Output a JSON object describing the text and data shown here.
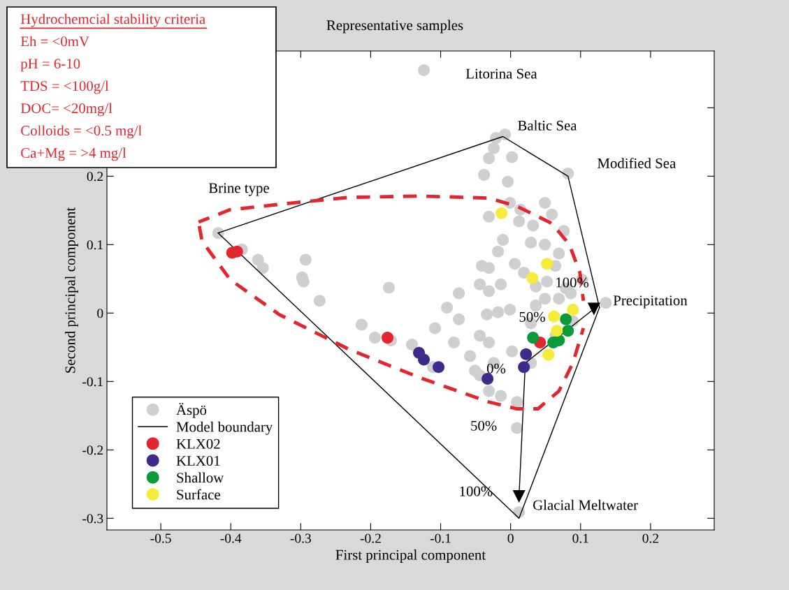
{
  "chart_data": {
    "type": "scatter",
    "title": "Representative samples",
    "xlabel": "First principal component",
    "ylabel": "Second principal component",
    "xlim": [
      -0.577,
      0.291
    ],
    "ylim": [
      -0.317,
      0.383
    ],
    "xticks": [
      -0.5,
      -0.4,
      -0.3,
      -0.2,
      -0.1,
      {
        "value": 0,
        "label": "0"
      },
      0.1,
      0.2
    ],
    "yticks": [
      -0.3,
      -0.2,
      -0.1,
      {
        "value": 0,
        "label": "0"
      },
      0.1,
      0.2,
      {
        "value": 0.3,
        "label": null
      }
    ],
    "grid": false,
    "legend": "bottom left",
    "marker": "circle",
    "series": [
      {
        "name": "Äspö",
        "color": "#cfcfd1",
        "x": [
          -0.124,
          -0.418,
          -0.384,
          -0.361,
          -0.354,
          -0.293,
          -0.298,
          -0.296,
          -0.273,
          -0.174,
          -0.213,
          -0.194,
          -0.171,
          -0.141,
          -0.021,
          -0.008,
          -0.024,
          -0.031,
          0.002,
          -0.038,
          -0.004,
          0.082,
          -0.001,
          0.049,
          0.059,
          0.076,
          0.012,
          0.032,
          -0.011,
          0.029,
          -0.018,
          0.049,
          0.069,
          -0.031,
          0.006,
          -0.044,
          -0.014,
          0.036,
          0.102,
          0.079,
          -0.074,
          -0.108,
          -0.034,
          -0.001,
          0.049,
          0.029,
          0.089,
          -0.044,
          -0.044,
          -0.014,
          0.009,
          0.012,
          -0.031,
          -0.018,
          0.002,
          -0.024,
          0.052,
          0.069,
          0.136,
          0.086,
          0.036,
          -0.081,
          -0.058,
          -0.074,
          -0.051,
          -0.031,
          0.009,
          0.029,
          0.064,
          -0.041,
          0.019,
          0.014,
          0.064,
          -0.091,
          -0.031,
          -0.111,
          -0.031
        ],
        "values": [
          0.355,
          0.117,
          0.093,
          0.078,
          0.066,
          0.078,
          0.052,
          0.046,
          0.018,
          0.037,
          -0.017,
          -0.036,
          -0.04,
          -0.046,
          0.256,
          0.261,
          0.241,
          0.226,
          0.228,
          0.202,
          0.192,
          0.204,
          0.161,
          0.161,
          0.144,
          0.12,
          0.134,
          0.128,
          0.107,
          0.103,
          0.09,
          0.1,
          0.087,
          0.066,
          0.072,
          0.042,
          0.042,
          0.039,
          0.049,
          0.036,
          -0.009,
          -0.022,
          -0.002,
          0.005,
          0.021,
          -0.015,
          -0.012,
          -0.033,
          -0.091,
          -0.121,
          -0.168,
          -0.291,
          0.032,
          0.001,
          -0.056,
          -0.073,
          0.046,
          0.021,
          0.015,
          0.029,
          0.011,
          -0.043,
          -0.063,
          0.029,
          -0.084,
          -0.114,
          -0.13,
          -0.073,
          -0.033,
          0.069,
          0.059,
          0.151,
          0.069,
          0.008,
          -0.043,
          -0.079,
          0.141
        ]
      },
      {
        "name": "Model boundary",
        "type": "line",
        "marker": "none",
        "line_style": "solid",
        "color": "#000000",
        "x": [
          -0.418,
          -0.011,
          0.082,
          0.127
        ],
        "values": [
          0.117,
          0.258,
          0.2,
          0.008
        ]
      },
      {
        "type": "line",
        "marker": "none",
        "line_style": "solid",
        "color": "#000000",
        "x": [
          -0.418,
          0.012,
          0.127
        ],
        "values": [
          0.117,
          -0.3,
          0.008
        ]
      },
      {
        "type": "line",
        "marker": "none",
        "line_style": "solid",
        "color": "#000000",
        "x": [
          0.012,
          0.021,
          0.119
        ],
        "values": [
          -0.268,
          -0.073,
          0.006
        ]
      },
      {
        "marker": "triangle",
        "color": "#000000",
        "x": [
          0.119,
          0.012
        ],
        "values": [
          0.006,
          -0.268
        ]
      },
      {
        "type": "line",
        "marker": "none",
        "line_style": "dashed",
        "color": "#e3262d",
        "x": [
          -0.446,
          -0.401,
          -0.311,
          -0.231,
          -0.131,
          -0.031,
          0.009,
          0.059,
          0.084,
          0.099,
          0.104
        ],
        "values": [
          0.133,
          0.151,
          0.161,
          0.169,
          0.171,
          0.168,
          0.156,
          0.131,
          0.1,
          0.059,
          0.018
        ]
      },
      {
        "type": "line",
        "marker": "none",
        "line_style": "dashed",
        "color": "#e3262d",
        "x": [
          -0.446,
          -0.441,
          -0.401,
          -0.331,
          -0.231,
          -0.131,
          -0.031,
          0.009,
          0.039,
          0.069,
          0.089,
          0.104
        ],
        "values": [
          0.133,
          0.105,
          0.049,
          -0.002,
          -0.053,
          -0.094,
          -0.13,
          -0.14,
          -0.14,
          -0.114,
          -0.073,
          -0.022
        ]
      },
      {
        "name": "KLX02",
        "color": "#e3262d",
        "x": [
          -0.398,
          -0.391,
          -0.176,
          0.042
        ],
        "values": [
          0.088,
          0.09,
          -0.036,
          -0.043
        ]
      },
      {
        "name": "KLX01",
        "color": "#3f2a8c",
        "x": [
          -0.131,
          -0.124,
          -0.103,
          -0.033,
          0.022,
          0.019
        ],
        "values": [
          -0.058,
          -0.068,
          -0.079,
          -0.096,
          -0.06,
          -0.079
        ]
      },
      {
        "name": "Shallow",
        "color": "#0a9a3a",
        "x": [
          0.032,
          0.079,
          0.061,
          0.082,
          0.069
        ],
        "values": [
          -0.036,
          -0.009,
          -0.043,
          -0.026,
          -0.04
        ]
      },
      {
        "name": "Surface",
        "color": "#f5eb3a",
        "x": [
          -0.013,
          0.052,
          0.031,
          0.089,
          0.062,
          0.066,
          0.054
        ],
        "values": [
          0.146,
          0.072,
          0.051,
          0.005,
          -0.005,
          -0.026,
          -0.061
        ]
      }
    ],
    "annotations": [
      "Hydrochemcial stability criteria",
      "Eh = <0mV",
      "pH = 6-10",
      "TDS = <100g/l",
      "DOC= <20mg/l",
      "Colloids = <0.5 mg/l",
      "Ca+Mg = >4 mg/l",
      {
        "text": "Litorina Sea",
        "x": -0.124,
        "y": 0.355
      },
      {
        "text": "Baltic Sea",
        "x": -0.011,
        "y": 0.258
      },
      {
        "text": "Modified Sea",
        "x": 0.082,
        "y": 0.2
      },
      {
        "text": "Brine type",
        "x": -0.418,
        "y": 0.117
      },
      {
        "text": "Precipitation",
        "x": 0.127,
        "y": 0.008
      },
      {
        "text": "Glacial Meltwater",
        "x": 0.012,
        "y": -0.291
      },
      {
        "text": "100%",
        "x": 0.119,
        "y": 0.006
      },
      {
        "text": "50%",
        "x": 0.07,
        "y": -0.033
      },
      {
        "text": "0%",
        "x": 0.021,
        "y": -0.073
      },
      {
        "text": "50%",
        "x": 0.009,
        "y": -0.168
      },
      {
        "text": "100%",
        "x": 0.012,
        "y": -0.268
      }
    ]
  }
}
